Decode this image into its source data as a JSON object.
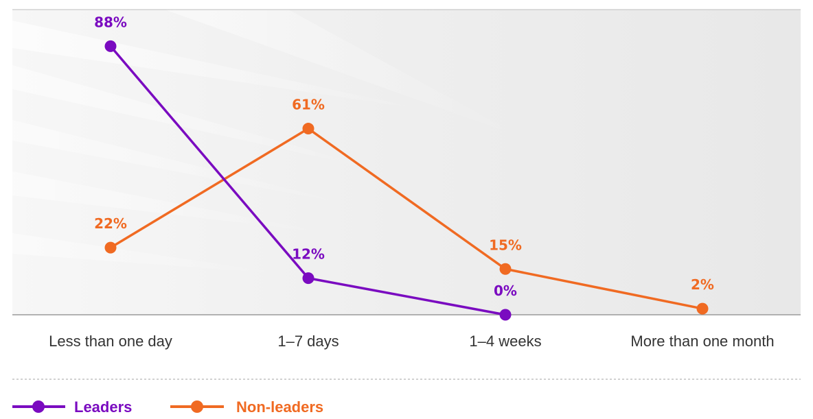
{
  "chart_data": {
    "type": "line",
    "categories": [
      "Less than one day",
      "1–7 days",
      "1–4 weeks",
      "More than one month"
    ],
    "ylim": [
      0,
      100
    ],
    "grid": false,
    "legend_position": "bottom-left",
    "series": [
      {
        "name": "Leaders",
        "color": "#7a0bc0",
        "values": [
          88,
          12,
          0,
          null
        ],
        "labels": [
          "88%",
          "12%",
          "0%",
          ""
        ]
      },
      {
        "name": "Non-leaders",
        "color": "#f06a22",
        "values": [
          22,
          61,
          15,
          2
        ],
        "labels": [
          "22%",
          "61%",
          "15%",
          "2%"
        ]
      }
    ]
  },
  "colors": {
    "background_panel": "#efefef",
    "axis_line": "#9a9a9a",
    "category_text": "#333333"
  }
}
